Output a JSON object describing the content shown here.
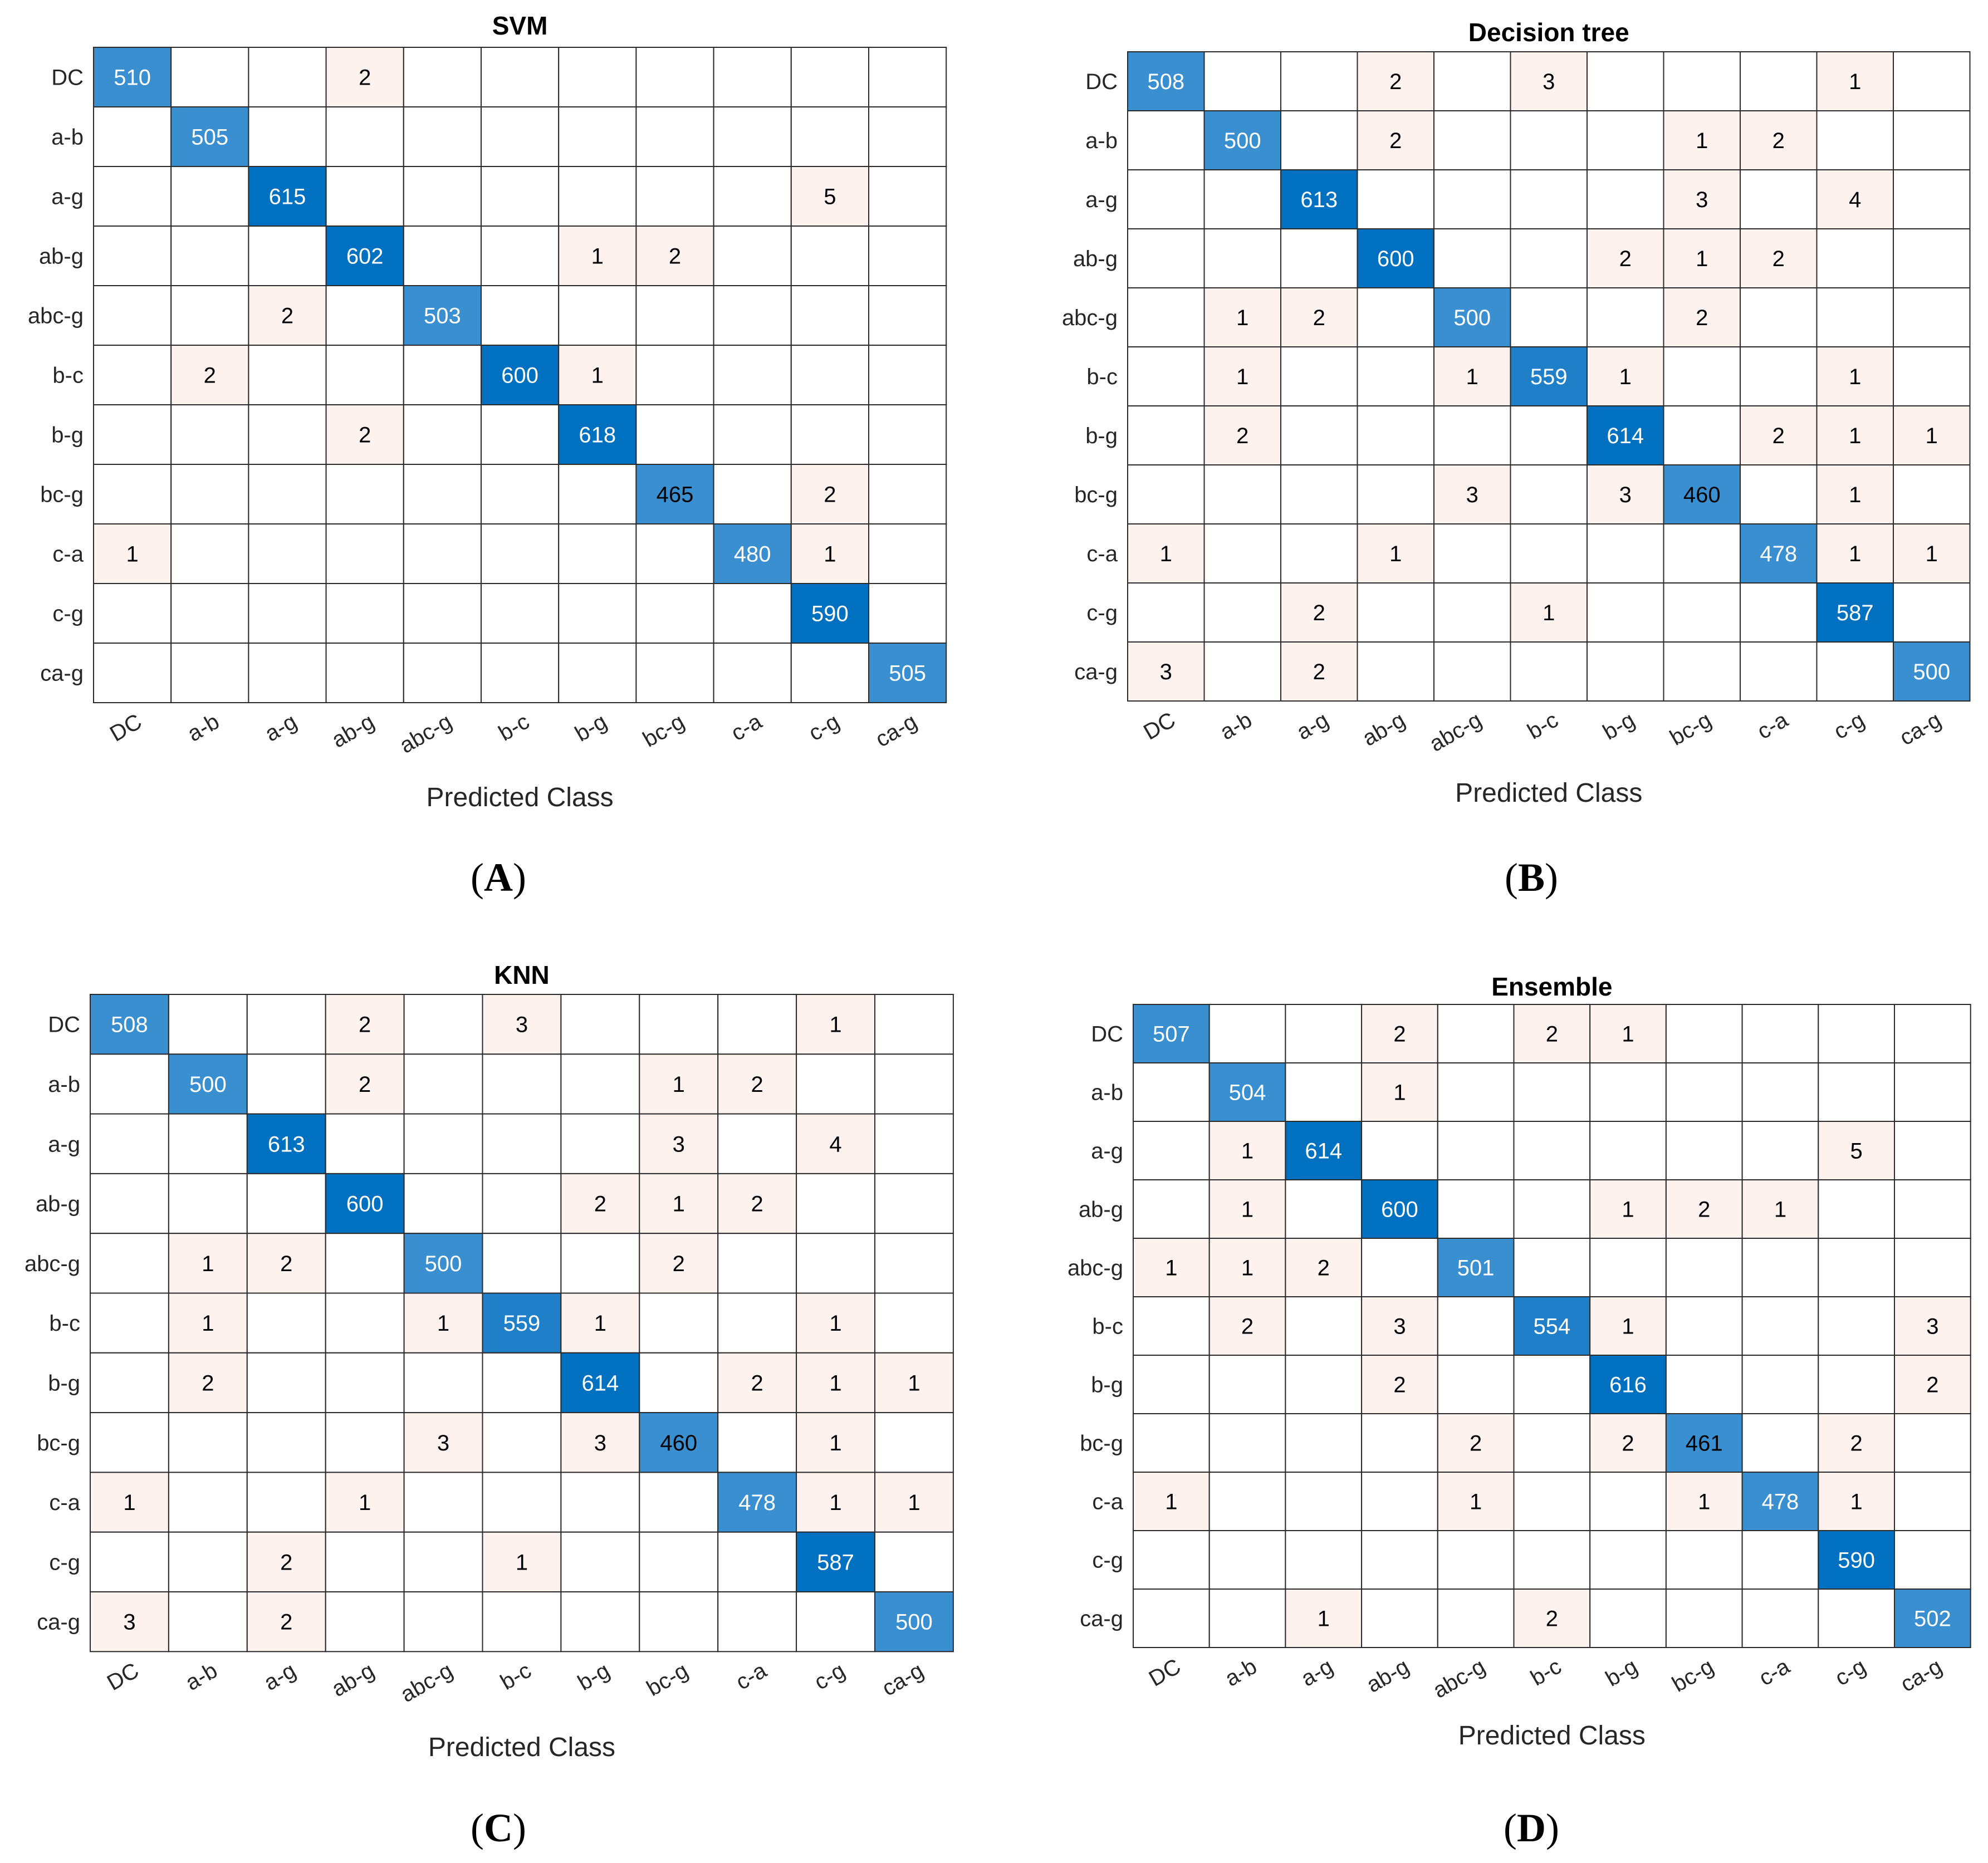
{
  "colors": {
    "diag_dark": "#0070C0",
    "diag_light": "#3A8FD0",
    "offdiag": "#FDF2EE",
    "grid": "#2a2a2a",
    "diag_text": "#ffffff"
  },
  "chart_data": [
    {
      "type": "heatmap",
      "panel_label": "A",
      "title": "SVM",
      "xlabel": "Predicted Class",
      "ylabel": "",
      "classes": [
        "DC",
        "a-b",
        "a-g",
        "ab-g",
        "abc-g",
        "b-c",
        "b-g",
        "bc-g",
        "c-a",
        "c-g",
        "ca-g"
      ],
      "matrix": [
        [
          510,
          0,
          0,
          2,
          0,
          0,
          0,
          0,
          0,
          0,
          0
        ],
        [
          0,
          505,
          0,
          0,
          0,
          0,
          0,
          0,
          0,
          0,
          0
        ],
        [
          0,
          0,
          615,
          0,
          0,
          0,
          0,
          0,
          0,
          5,
          0
        ],
        [
          0,
          0,
          0,
          602,
          0,
          0,
          1,
          2,
          0,
          0,
          0
        ],
        [
          0,
          0,
          2,
          0,
          503,
          0,
          0,
          0,
          0,
          0,
          0
        ],
        [
          0,
          2,
          0,
          0,
          0,
          600,
          1,
          0,
          0,
          0,
          0
        ],
        [
          0,
          0,
          0,
          2,
          0,
          0,
          618,
          0,
          0,
          0,
          0
        ],
        [
          0,
          0,
          0,
          0,
          0,
          0,
          0,
          465,
          0,
          2,
          0
        ],
        [
          1,
          0,
          0,
          0,
          0,
          0,
          0,
          0,
          480,
          1,
          0
        ],
        [
          0,
          0,
          0,
          0,
          0,
          0,
          0,
          0,
          0,
          590,
          0
        ],
        [
          0,
          0,
          0,
          0,
          0,
          0,
          0,
          0,
          0,
          0,
          505
        ]
      ]
    },
    {
      "type": "heatmap",
      "panel_label": "B",
      "title": "Decision tree",
      "xlabel": "Predicted Class",
      "ylabel": "",
      "classes": [
        "DC",
        "a-b",
        "a-g",
        "ab-g",
        "abc-g",
        "b-c",
        "b-g",
        "bc-g",
        "c-a",
        "c-g",
        "ca-g"
      ],
      "matrix": [
        [
          508,
          0,
          0,
          2,
          0,
          3,
          0,
          0,
          0,
          1,
          0
        ],
        [
          0,
          500,
          0,
          2,
          0,
          0,
          0,
          1,
          2,
          0,
          0
        ],
        [
          0,
          0,
          613,
          0,
          0,
          0,
          0,
          3,
          0,
          4,
          0
        ],
        [
          0,
          0,
          0,
          600,
          0,
          0,
          2,
          1,
          2,
          0,
          0
        ],
        [
          0,
          1,
          2,
          0,
          500,
          0,
          0,
          2,
          0,
          0,
          0
        ],
        [
          0,
          1,
          0,
          0,
          1,
          559,
          1,
          0,
          0,
          1,
          0
        ],
        [
          0,
          2,
          0,
          0,
          0,
          0,
          614,
          0,
          2,
          1,
          1
        ],
        [
          0,
          0,
          0,
          0,
          3,
          0,
          3,
          460,
          0,
          1,
          0
        ],
        [
          1,
          0,
          0,
          1,
          0,
          0,
          0,
          0,
          478,
          1,
          1
        ],
        [
          0,
          0,
          2,
          0,
          0,
          1,
          0,
          0,
          0,
          587,
          0
        ],
        [
          3,
          0,
          2,
          0,
          0,
          0,
          0,
          0,
          0,
          0,
          500
        ]
      ]
    },
    {
      "type": "heatmap",
      "panel_label": "C",
      "title": "KNN",
      "xlabel": "Predicted Class",
      "ylabel": "",
      "classes": [
        "DC",
        "a-b",
        "a-g",
        "ab-g",
        "abc-g",
        "b-c",
        "b-g",
        "bc-g",
        "c-a",
        "c-g",
        "ca-g"
      ],
      "matrix": [
        [
          508,
          0,
          0,
          2,
          0,
          3,
          0,
          0,
          0,
          1,
          0
        ],
        [
          0,
          500,
          0,
          2,
          0,
          0,
          0,
          1,
          2,
          0,
          0
        ],
        [
          0,
          0,
          613,
          0,
          0,
          0,
          0,
          3,
          0,
          4,
          0
        ],
        [
          0,
          0,
          0,
          600,
          0,
          0,
          2,
          1,
          2,
          0,
          0
        ],
        [
          0,
          1,
          2,
          0,
          500,
          0,
          0,
          2,
          0,
          0,
          0
        ],
        [
          0,
          1,
          0,
          0,
          1,
          559,
          1,
          0,
          0,
          1,
          0
        ],
        [
          0,
          2,
          0,
          0,
          0,
          0,
          614,
          0,
          2,
          1,
          1
        ],
        [
          0,
          0,
          0,
          0,
          3,
          0,
          3,
          460,
          0,
          1,
          0
        ],
        [
          1,
          0,
          0,
          1,
          0,
          0,
          0,
          0,
          478,
          1,
          1
        ],
        [
          0,
          0,
          2,
          0,
          0,
          1,
          0,
          0,
          0,
          587,
          0
        ],
        [
          3,
          0,
          2,
          0,
          0,
          0,
          0,
          0,
          0,
          0,
          500
        ]
      ]
    },
    {
      "type": "heatmap",
      "panel_label": "D",
      "title": "Ensemble",
      "xlabel": "Predicted Class",
      "ylabel": "",
      "classes": [
        "DC",
        "a-b",
        "a-g",
        "ab-g",
        "abc-g",
        "b-c",
        "b-g",
        "bc-g",
        "c-a",
        "c-g",
        "ca-g"
      ],
      "matrix": [
        [
          507,
          0,
          0,
          2,
          0,
          2,
          1,
          0,
          0,
          0,
          0
        ],
        [
          0,
          504,
          0,
          1,
          0,
          0,
          0,
          0,
          0,
          0,
          0
        ],
        [
          0,
          1,
          614,
          0,
          0,
          0,
          0,
          0,
          0,
          5,
          0
        ],
        [
          0,
          1,
          0,
          600,
          0,
          0,
          1,
          2,
          1,
          0,
          0
        ],
        [
          1,
          1,
          2,
          0,
          501,
          0,
          0,
          0,
          0,
          0,
          0
        ],
        [
          0,
          2,
          0,
          3,
          0,
          554,
          1,
          0,
          0,
          0,
          3
        ],
        [
          0,
          0,
          0,
          2,
          0,
          0,
          616,
          0,
          0,
          0,
          2
        ],
        [
          0,
          0,
          0,
          0,
          2,
          0,
          2,
          461,
          0,
          2,
          0
        ],
        [
          1,
          0,
          0,
          0,
          1,
          0,
          0,
          1,
          478,
          1,
          0
        ],
        [
          0,
          0,
          0,
          0,
          0,
          0,
          0,
          0,
          0,
          590,
          0
        ],
        [
          0,
          0,
          1,
          0,
          0,
          2,
          0,
          0,
          0,
          0,
          502
        ]
      ]
    }
  ]
}
